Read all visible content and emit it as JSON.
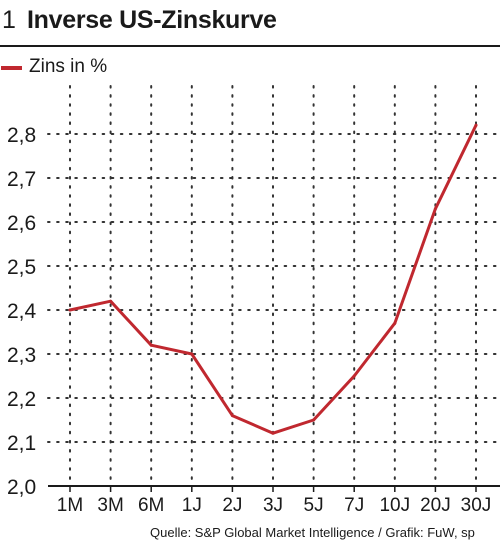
{
  "header": {
    "number": "1",
    "title": "Inverse US-Zinskurve"
  },
  "legend": {
    "label": "Zins in %",
    "color": "#c0282f"
  },
  "source": "Quelle: S&P Global Market Intelligence / Grafik: FuW, sp",
  "chart_data": {
    "type": "line",
    "categories": [
      "1M",
      "3M",
      "6M",
      "1J",
      "2J",
      "3J",
      "5J",
      "7J",
      "10J",
      "20J",
      "30J"
    ],
    "series": [
      {
        "name": "Zins in %",
        "color": "#c0282f",
        "values": [
          2.4,
          2.42,
          2.32,
          2.3,
          2.16,
          2.12,
          2.15,
          2.25,
          2.37,
          2.63,
          2.82
        ]
      }
    ],
    "title": "Inverse US-Zinskurve",
    "xlabel": "",
    "ylabel": "",
    "ylim": [
      2.0,
      2.85
    ],
    "yticks": [
      "2,0",
      "2,1",
      "2,2",
      "2,3",
      "2,4",
      "2,5",
      "2,6",
      "2,7",
      "2,8"
    ],
    "grid": "dotted"
  }
}
